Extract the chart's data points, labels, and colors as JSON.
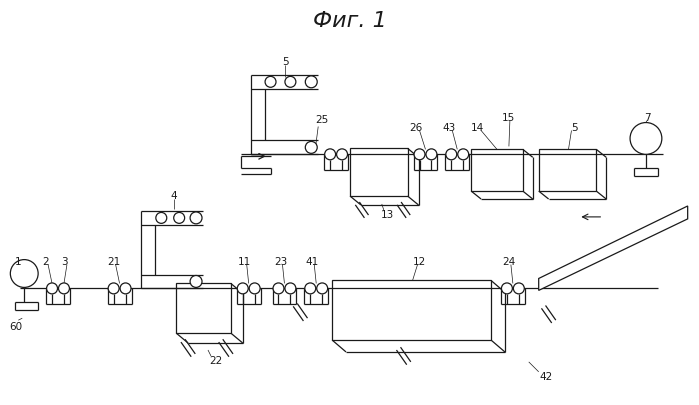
{
  "title": "Фиг. 1",
  "bg_color": "#ffffff",
  "line_color": "#1a1a1a",
  "fig_width": 6.99,
  "fig_height": 4.06,
  "dpi": 100
}
